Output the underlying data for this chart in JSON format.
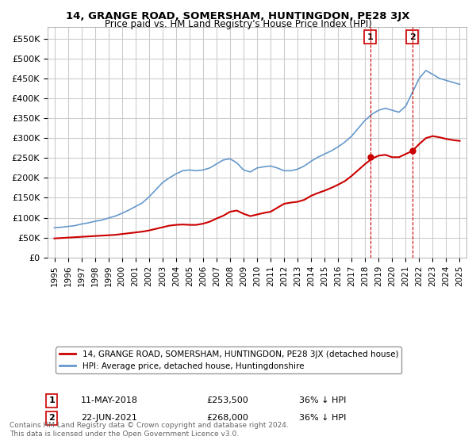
{
  "title": "14, GRANGE ROAD, SOMERSHAM, HUNTINGDON, PE28 3JX",
  "subtitle": "Price paid vs. HM Land Registry's House Price Index (HPI)",
  "legend_red": "14, GRANGE ROAD, SOMERSHAM, HUNTINGDON, PE28 3JX (detached house)",
  "legend_blue": "HPI: Average price, detached house, Huntingdonshire",
  "annotation1_label": "1",
  "annotation1_date": "11-MAY-2018",
  "annotation1_price": "£253,500",
  "annotation1_hpi": "36% ↓ HPI",
  "annotation1_year": 2018.37,
  "annotation1_value": 253500,
  "annotation2_label": "2",
  "annotation2_date": "22-JUN-2021",
  "annotation2_price": "£268,000",
  "annotation2_hpi": "36% ↓ HPI",
  "annotation2_year": 2021.48,
  "annotation2_value": 268000,
  "footer": "Contains HM Land Registry data © Crown copyright and database right 2024.\nThis data is licensed under the Open Government Licence v3.0.",
  "red_color": "#cc0000",
  "blue_color": "#6699cc",
  "annotation_line_color": "#cc0000",
  "background_color": "#ffffff",
  "grid_color": "#cccccc",
  "ylim": [
    0,
    580000
  ],
  "yticks": [
    0,
    50000,
    100000,
    150000,
    200000,
    250000,
    300000,
    350000,
    400000,
    450000,
    500000,
    550000
  ],
  "hpi_years": [
    1995,
    1995.5,
    1996,
    1996.5,
    1997,
    1997.5,
    1998,
    1998.5,
    1999,
    1999.5,
    2000,
    2000.5,
    2001,
    2001.5,
    2002,
    2002.5,
    2003,
    2003.5,
    2004,
    2004.5,
    2005,
    2005.5,
    2006,
    2006.5,
    2007,
    2007.5,
    2008,
    2008.5,
    2009,
    2009.5,
    2010,
    2010.5,
    2011,
    2011.5,
    2012,
    2012.5,
    2013,
    2013.5,
    2014,
    2014.5,
    2015,
    2015.5,
    2016,
    2016.5,
    2017,
    2017.5,
    2018,
    2018.5,
    2019,
    2019.5,
    2020,
    2020.5,
    2021,
    2021.5,
    2022,
    2022.5,
    2023,
    2023.5,
    2024,
    2024.5,
    2025
  ],
  "hpi_values": [
    75000,
    76000,
    78000,
    80000,
    84000,
    87000,
    91000,
    94000,
    99000,
    104000,
    111000,
    119000,
    128000,
    137000,
    152000,
    170000,
    188000,
    200000,
    210000,
    218000,
    220000,
    218000,
    220000,
    225000,
    235000,
    245000,
    248000,
    238000,
    220000,
    215000,
    225000,
    228000,
    230000,
    225000,
    218000,
    218000,
    222000,
    230000,
    242000,
    252000,
    260000,
    268000,
    278000,
    290000,
    305000,
    325000,
    345000,
    360000,
    370000,
    375000,
    370000,
    365000,
    380000,
    415000,
    450000,
    470000,
    460000,
    450000,
    445000,
    440000,
    435000
  ],
  "red_years": [
    1995,
    1995.5,
    1996,
    1996.5,
    1997,
    1997.5,
    1998,
    1998.5,
    1999,
    1999.5,
    2000,
    2000.5,
    2001,
    2001.5,
    2002,
    2002.5,
    2003,
    2003.5,
    2004,
    2004.5,
    2005,
    2005.5,
    2006,
    2006.5,
    2007,
    2007.5,
    2008,
    2008.5,
    2009,
    2009.5,
    2010,
    2010.5,
    2011,
    2011.5,
    2012,
    2012.5,
    2013,
    2013.5,
    2014,
    2014.5,
    2015,
    2015.5,
    2016,
    2016.5,
    2017,
    2017.5,
    2018,
    2018.5,
    2019,
    2019.5,
    2020,
    2020.5,
    2021,
    2021.5,
    2022,
    2022.5,
    2023,
    2023.5,
    2024,
    2024.5,
    2025
  ],
  "red_values": [
    48000,
    49000,
    50000,
    51000,
    52000,
    53000,
    54000,
    55000,
    56000,
    57000,
    59000,
    61000,
    63000,
    65000,
    68000,
    72000,
    76000,
    80000,
    82000,
    83000,
    82000,
    82000,
    85000,
    90000,
    98000,
    105000,
    115000,
    118000,
    110000,
    104000,
    108000,
    112000,
    115000,
    125000,
    135000,
    138000,
    140000,
    145000,
    155000,
    162000,
    168000,
    175000,
    183000,
    192000,
    205000,
    220000,
    235000,
    248000,
    256000,
    258000,
    252000,
    252000,
    260000,
    268000,
    285000,
    300000,
    305000,
    302000,
    298000,
    295000,
    293000
  ]
}
